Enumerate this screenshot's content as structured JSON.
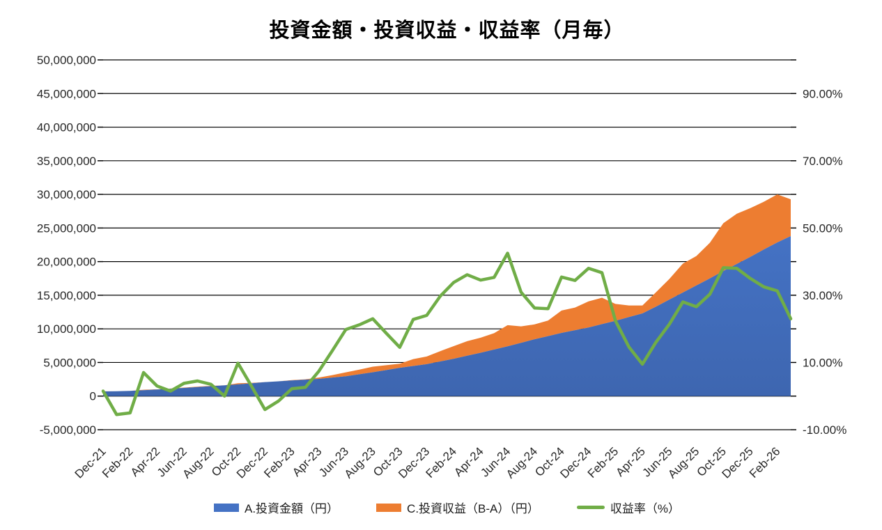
{
  "page_title": "投資金額・投資収益・収益率（月毎）",
  "colors": {
    "invested_area": "#4472C4",
    "invested_area_gradient_bottom": "#3E66B0",
    "profit_area": "#ED7D31",
    "rate_line": "#70AD47",
    "grid": "#000000",
    "axis_text": "#262626",
    "background": "#FFFFFF"
  },
  "legend": {
    "items": [
      {
        "label": "A.投資金額（円）",
        "marker": "rect",
        "color": "#4472C4"
      },
      {
        "label": "C.投資収益（B-A）（円）",
        "marker": "rect",
        "color": "#ED7D31"
      },
      {
        "label": "収益率（%）",
        "marker": "line",
        "color": "#70AD47"
      }
    ]
  },
  "chart_data": {
    "type": "combo-stacked-area-line",
    "title": "投資金額・投資収益・収益率（月毎）",
    "grid": true,
    "legend_position": "bottom",
    "categories": [
      "Dec-21",
      "Jan-22",
      "Feb-22",
      "Mar-22",
      "Apr-22",
      "May-22",
      "Jun-22",
      "Jul-22",
      "Aug-22",
      "Sep-22",
      "Oct-22",
      "Nov-22",
      "Dec-22",
      "Jan-23",
      "Feb-23",
      "Mar-23",
      "Apr-23",
      "May-23",
      "Jun-23",
      "Jul-23",
      "Aug-23",
      "Sep-23",
      "Oct-23",
      "Nov-23",
      "Dec-23",
      "Jan-24",
      "Feb-24",
      "Mar-24",
      "Apr-24",
      "May-24",
      "Jun-24",
      "Jul-24",
      "Aug-24",
      "Sep-24",
      "Oct-24",
      "Nov-24",
      "Dec-24",
      "Jan-25",
      "Feb-25",
      "Mar-25",
      "Apr-25",
      "May-25",
      "Jun-25",
      "Jul-25",
      "Aug-25",
      "Sep-25",
      "Oct-25",
      "Nov-25",
      "Dec-25",
      "Jan-26",
      "Feb-26",
      "Mar-26"
    ],
    "x_axis": {
      "label_every": 2,
      "rotation": -45
    },
    "left_axis": {
      "min": -5000000,
      "max": 50000000,
      "step": 5000000,
      "tick_labels": [
        "50,000,000",
        "45,000,000",
        "40,000,000",
        "35,000,000",
        "30,000,000",
        "25,000,000",
        "20,000,000",
        "15,000,000",
        "10,000,000",
        "5,000,000",
        "0",
        "-5,000,000"
      ]
    },
    "right_axis": {
      "min": -10,
      "max": 100,
      "step": 10,
      "label_values": [
        90,
        70,
        50,
        30,
        10,
        -10
      ],
      "tick_labels": [
        "90.00%",
        "70.00%",
        "50.00%",
        "30.00%",
        "10.00%",
        "-10.00%"
      ]
    },
    "series": [
      {
        "name": "A.投資金額（円）",
        "type": "area-stacked",
        "axis": "left",
        "color": "#4472C4",
        "values": [
          700000,
          720000,
          780000,
          880000,
          980000,
          1100000,
          1220000,
          1350000,
          1480000,
          1600000,
          1740000,
          1900000,
          2080000,
          2200000,
          2330000,
          2440000,
          2560000,
          2750000,
          2950000,
          3250000,
          3550000,
          3870000,
          4200000,
          4480000,
          4750000,
          5150000,
          5550000,
          6000000,
          6450000,
          6920000,
          7400000,
          7920000,
          8450000,
          8920000,
          9400000,
          9800000,
          10200000,
          10700000,
          11200000,
          11750000,
          12300000,
          13300000,
          14350000,
          15400000,
          16450000,
          17500000,
          18600000,
          19650000,
          20700000,
          21800000,
          22850000,
          23800000
        ]
      },
      {
        "name": "C.投資収益（B-A）（円）",
        "type": "area-stacked",
        "axis": "left",
        "color": "#ED7D31",
        "values": [
          10000,
          -40000,
          -40000,
          60000,
          30000,
          20000,
          50000,
          60000,
          50000,
          0,
          170000,
          60000,
          -80000,
          -30000,
          50000,
          60000,
          190000,
          370000,
          580000,
          690000,
          820000,
          720000,
          610000,
          1020000,
          1140000,
          1530000,
          1880000,
          2170000,
          2230000,
          2440000,
          3150000,
          2450000,
          2210000,
          2320000,
          3330000,
          3370000,
          3880000,
          3930000,
          2510000,
          1720000,
          1170000,
          2130000,
          3070000,
          4310000,
          4380000,
          5300000,
          7110000,
          7470000,
          7250000,
          7090000,
          7150000,
          5470000
        ]
      },
      {
        "name": "収益率（%）",
        "type": "line",
        "axis": "right",
        "color": "#70AD47",
        "values": [
          1.5,
          -5.5,
          -5.0,
          7.0,
          3.0,
          1.5,
          3.8,
          4.5,
          3.5,
          0.0,
          9.8,
          3.0,
          -4.0,
          -1.5,
          2.2,
          2.6,
          7.4,
          13.5,
          19.8,
          21.2,
          23.0,
          18.7,
          14.5,
          22.8,
          24.0,
          29.7,
          33.8,
          36.1,
          34.5,
          35.3,
          42.5,
          30.9,
          26.2,
          26.0,
          35.4,
          34.4,
          38.0,
          36.7,
          22.4,
          14.6,
          9.5,
          16.0,
          21.4,
          28.0,
          26.6,
          30.3,
          38.2,
          38.0,
          35.0,
          32.5,
          31.3,
          23.0
        ]
      }
    ]
  }
}
